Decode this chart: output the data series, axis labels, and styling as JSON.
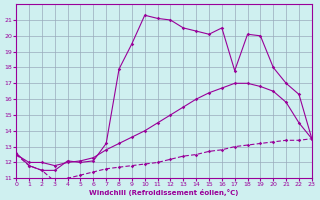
{
  "xlabel": "Windchill (Refroidissement éolien,°C)",
  "xlim": [
    0,
    23
  ],
  "ylim": [
    11,
    22
  ],
  "yticks": [
    11,
    12,
    13,
    14,
    15,
    16,
    17,
    18,
    19,
    20,
    21
  ],
  "xticks": [
    0,
    1,
    2,
    3,
    4,
    5,
    6,
    7,
    8,
    9,
    10,
    11,
    12,
    13,
    14,
    15,
    16,
    17,
    18,
    19,
    20,
    21,
    22,
    23
  ],
  "background_color": "#cff0f0",
  "line_color": "#990099",
  "grid_color": "#99aabb",
  "line1_x": [
    0,
    1,
    2,
    3,
    4,
    5,
    6,
    7,
    8,
    9,
    10,
    11,
    12,
    13,
    14,
    15,
    16,
    17,
    18,
    19,
    20,
    21,
    22,
    23
  ],
  "line1_y": [
    12.6,
    11.8,
    11.5,
    11.5,
    12.1,
    12.0,
    12.1,
    13.2,
    17.9,
    19.5,
    21.3,
    21.1,
    21.0,
    20.5,
    20.3,
    20.1,
    20.5,
    17.8,
    20.1,
    20.0,
    18.0,
    17.0,
    16.3,
    13.5
  ],
  "line2_x": [
    0,
    1,
    2,
    3,
    4,
    5,
    6,
    7,
    8,
    9,
    10,
    11,
    12,
    13,
    14,
    15,
    16,
    17,
    18,
    19,
    20,
    21,
    22,
    23
  ],
  "line2_y": [
    12.5,
    12.0,
    12.0,
    11.8,
    12.0,
    12.1,
    12.3,
    12.8,
    13.2,
    13.6,
    14.0,
    14.5,
    15.0,
    15.5,
    16.0,
    16.4,
    16.7,
    17.0,
    17.0,
    16.8,
    16.5,
    15.8,
    14.5,
    13.5
  ],
  "line3_x": [
    0,
    1,
    2,
    3,
    4,
    5,
    6,
    7,
    8,
    9,
    10,
    11,
    12,
    13,
    14,
    15,
    16,
    17,
    18,
    19,
    20,
    21,
    22,
    23
  ],
  "line3_y": [
    12.5,
    11.8,
    11.5,
    10.8,
    11.0,
    11.2,
    11.4,
    11.6,
    11.7,
    11.8,
    11.9,
    12.0,
    12.2,
    12.4,
    12.5,
    12.7,
    12.8,
    13.0,
    13.1,
    13.2,
    13.3,
    13.4,
    13.4,
    13.5
  ]
}
